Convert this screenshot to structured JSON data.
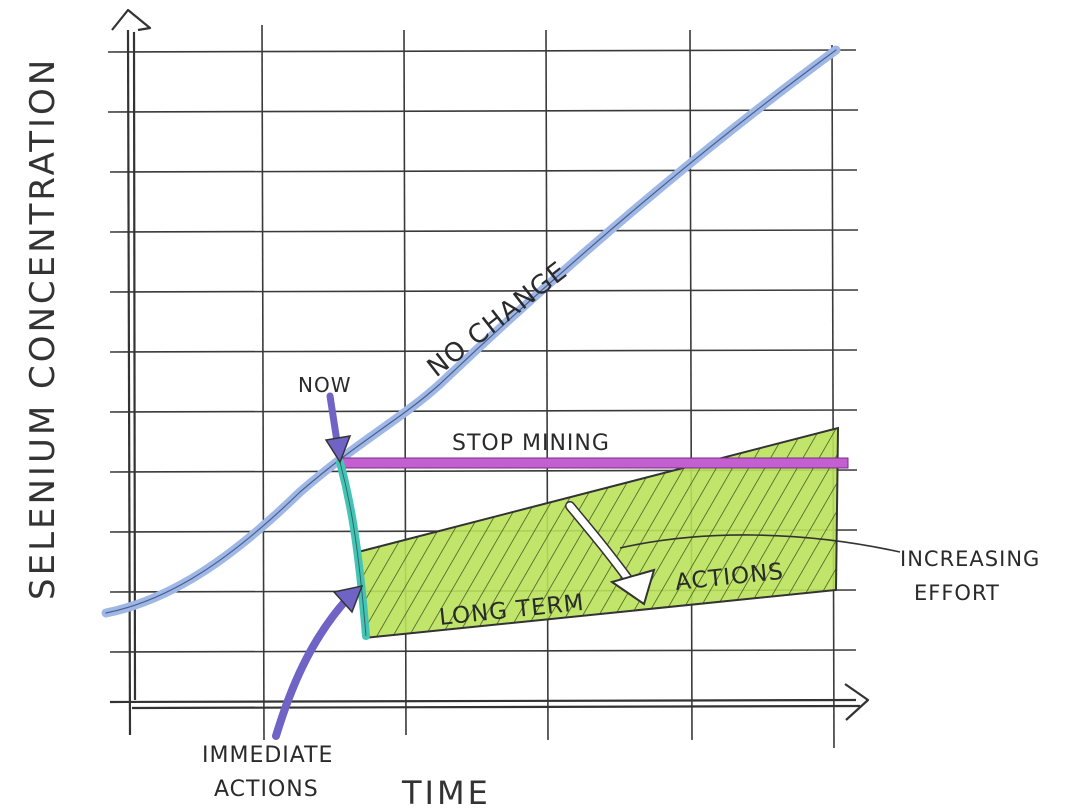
{
  "labels": {
    "y_axis": "SELENIUM CONCENTRATION",
    "x_axis": "TIME",
    "no_change": "NO CHANGE",
    "now": "NOW",
    "stop_mining": "STOP MINING",
    "long_term": "LONG TERM",
    "actions": "ACTIONS",
    "increasing": "INCREASING",
    "effort": "EFFORT",
    "immediate": "IMMEDIATE",
    "immediate_actions": "ACTIONS"
  },
  "colors": {
    "no_change_line": "#9fb7e6",
    "stop_mining_line": "#c35fd0",
    "immediate_line": "#45c4b5",
    "arrow_purple": "#6f64c6",
    "long_term_fill": "#b9e25a",
    "grid": "#333333"
  }
}
